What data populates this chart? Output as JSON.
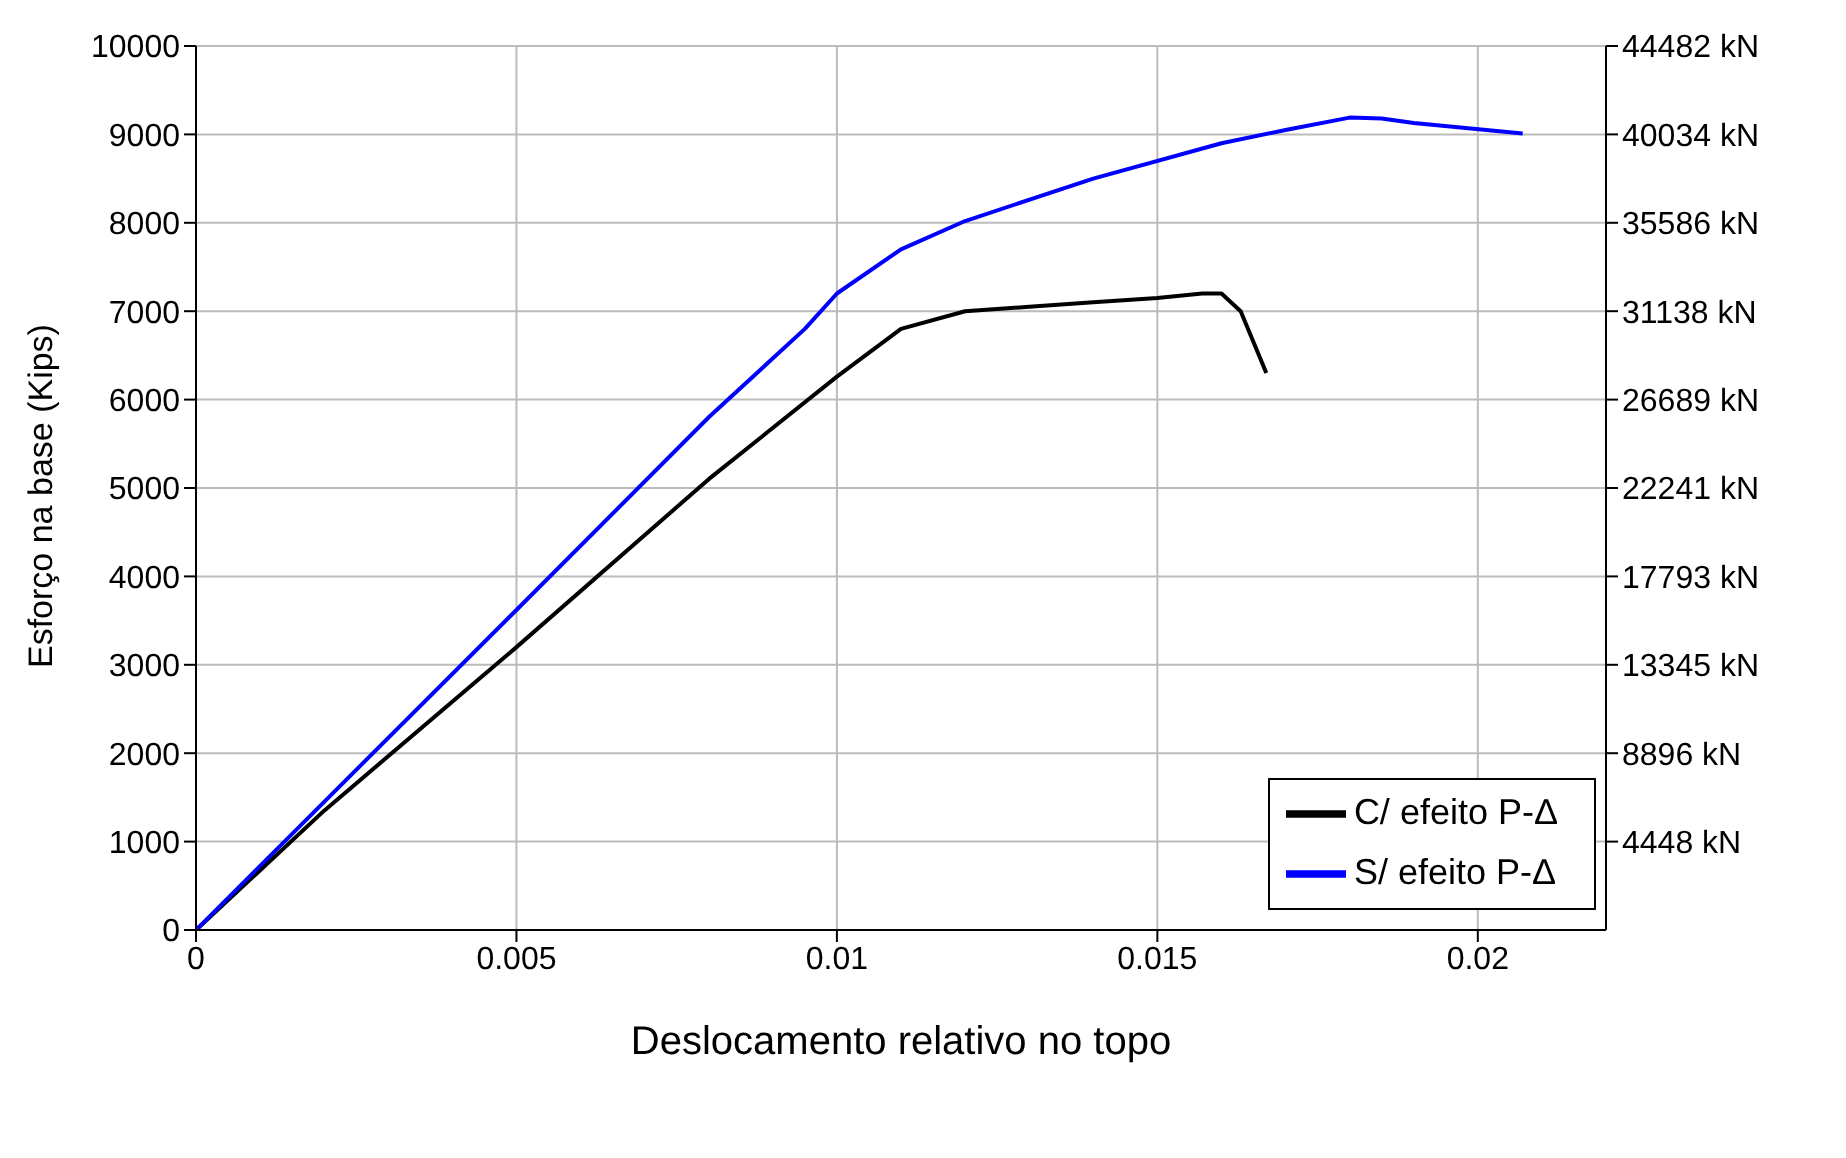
{
  "chart_data": {
    "type": "line",
    "xlabel": "Deslocamento relativo no topo",
    "ylabel": "Esforço na base (Kips)",
    "xlim": [
      0,
      0.022
    ],
    "xticks": [
      0,
      0.005,
      0.01,
      0.015,
      0.02
    ],
    "ylim": [
      0,
      10000
    ],
    "yticks": [
      0,
      1000,
      2000,
      3000,
      4000,
      5000,
      6000,
      7000,
      8000,
      9000,
      10000
    ],
    "y2lim": [
      0,
      44482
    ],
    "y2ticks": [
      {
        "value": 4448,
        "label": "4448 kN"
      },
      {
        "value": 8896,
        "label": "8896 kN"
      },
      {
        "value": 13345,
        "label": "13345 kN"
      },
      {
        "value": 17793,
        "label": "17793 kN"
      },
      {
        "value": 22241,
        "label": "22241 kN"
      },
      {
        "value": 26689,
        "label": "26689 kN"
      },
      {
        "value": 31138,
        "label": "31138 kN"
      },
      {
        "value": 35586,
        "label": "35586 kN"
      },
      {
        "value": 40034,
        "label": "40034 kN"
      },
      {
        "value": 44482,
        "label": "44482 kN"
      }
    ],
    "grid": true,
    "legend": "bottom right",
    "marker": "none",
    "line_style": "solid",
    "series": [
      {
        "name": "C/ efeito P-Δ",
        "color": "#000000",
        "x": [
          0,
          0.002,
          0.005,
          0.008,
          0.01,
          0.011,
          0.012,
          0.013,
          0.014,
          0.015,
          0.0157,
          0.016,
          0.0163,
          0.0167
        ],
        "values": [
          0,
          1350,
          3200,
          5100,
          6260,
          6800,
          7000,
          7050,
          7100,
          7150,
          7200,
          7200,
          7000,
          6300
        ]
      },
      {
        "name": "S/ efeito P-Δ",
        "color": "#0000ff",
        "x": [
          0,
          0.002,
          0.005,
          0.008,
          0.0095,
          0.01,
          0.011,
          0.012,
          0.014,
          0.016,
          0.017,
          0.018,
          0.0185,
          0.019,
          0.0207
        ],
        "values": [
          0,
          1450,
          3620,
          5800,
          6800,
          7200,
          7700,
          8020,
          8500,
          8900,
          9050,
          9190,
          9180,
          9130,
          9010
        ]
      }
    ]
  }
}
